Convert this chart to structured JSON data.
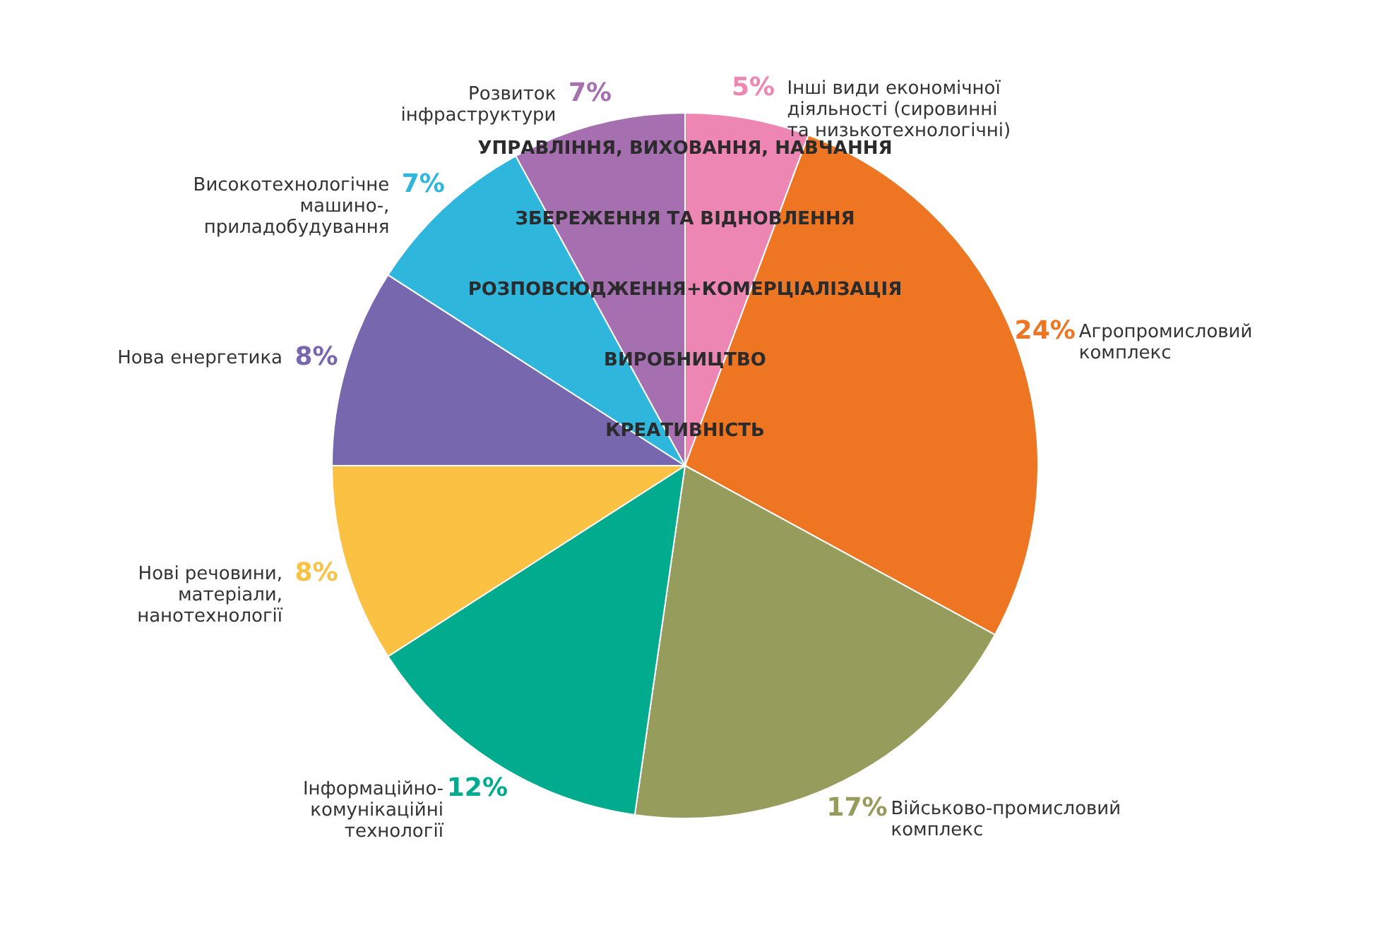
{
  "chart_data": {
    "type": "pie",
    "categories": [
      "Інші види економічної\nдіяльності (сировинні\nта низькотехнологічні)",
      "Агропромисловий\nкомплекс",
      "Військово-промисловий\nкомплекс",
      "Інформаційно-\nкомунікаційні\nтехнології",
      "Нові речовини,\nматеріали,\nнанотехнології",
      "Нова енергетика",
      "Високотехнологічне\nмашино-,\nприладобудування",
      "Розвиток\nінфраструктури"
    ],
    "values": [
      5,
      24,
      17,
      12,
      8,
      8,
      7,
      7
    ],
    "value_labels": [
      "5%",
      "24%",
      "17%",
      "12%",
      "8%",
      "8%",
      "7%",
      "7%"
    ],
    "colors": [
      "#ee86b4",
      "#ee7623",
      "#959c5c",
      "#00ab8e",
      "#fbc143",
      "#7667ae",
      "#2eb6dd",
      "#a56fb0"
    ],
    "annotations": [
      "УПРАВЛІННЯ, ВИХОВАННЯ, НАВЧАННЯ",
      "ЗБЕРЕЖЕННЯ ТА ВІДНОВЛЕННЯ",
      "РОЗПОВСЮДЖЕННЯ+КОМЕРЦІАЛІЗАЦІЯ",
      "ВИРОБНИЦТВО",
      "КРЕАТИВНІСТЬ"
    ]
  }
}
